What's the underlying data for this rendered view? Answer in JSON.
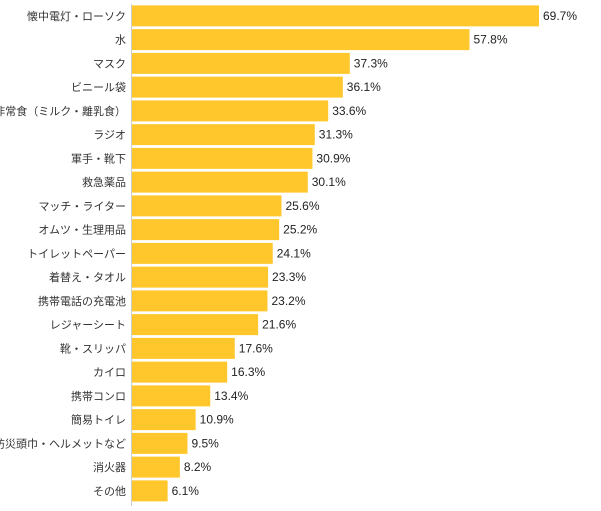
{
  "chart_data": {
    "type": "bar",
    "orientation": "horizontal",
    "title": "",
    "xlabel": "",
    "ylabel": "",
    "xlim": [
      0,
      69.7
    ],
    "unit": "%",
    "grid": false,
    "bar_color": "#FFC72C",
    "categories": [
      "懐中電灯・ローソク",
      "水",
      "マスク",
      "ビニール袋",
      "非常食（ミルク・離乳食）",
      "ラジオ",
      "軍手・靴下",
      "救急薬品",
      "マッチ・ライター",
      "オムツ・生理用品",
      "トイレットペーパー",
      "着替え・タオル",
      "携帯電話の充電池",
      "レジャーシート",
      "靴・スリッパ",
      "カイロ",
      "携帯コンロ",
      "簡易トイレ",
      "防災頭巾・ヘルメットなど",
      "消火器",
      "その他"
    ],
    "values": [
      69.7,
      57.8,
      37.3,
      36.1,
      33.6,
      31.3,
      30.9,
      30.1,
      25.6,
      25.2,
      24.1,
      23.3,
      23.2,
      21.6,
      17.6,
      16.3,
      13.4,
      10.9,
      9.5,
      8.2,
      6.1
    ],
    "value_labels": [
      "69.7%",
      "57.8%",
      "37.3%",
      "36.1%",
      "33.6%",
      "31.3%",
      "30.9%",
      "30.1%",
      "25.6%",
      "25.2%",
      "24.1%",
      "23.3%",
      "23.2%",
      "21.6%",
      "17.6%",
      "16.3%",
      "13.4%",
      "10.9%",
      "9.5%",
      "8.2%",
      "6.1%"
    ]
  }
}
